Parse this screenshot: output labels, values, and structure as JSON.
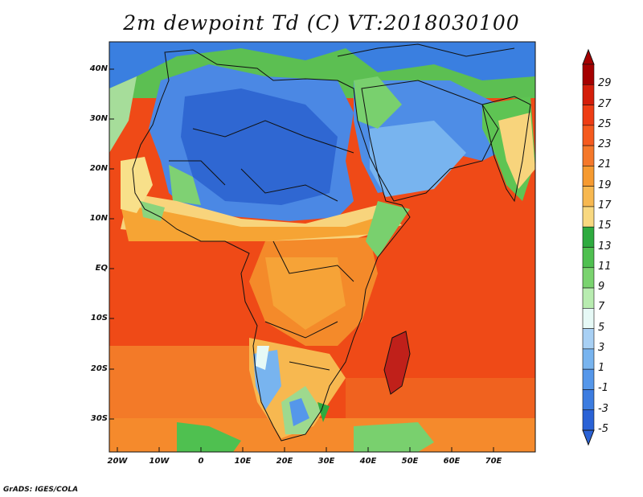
{
  "title": "2m dewpoint Td (C) VT:2018030100",
  "credit": "GrADS: IGES/COLA",
  "map": {
    "lat_labels": [
      "40N",
      "30N",
      "20N",
      "10N",
      "EQ",
      "10S",
      "20S",
      "30S"
    ],
    "lon_labels": [
      "20W",
      "10W",
      "0",
      "10E",
      "20E",
      "30E",
      "40E",
      "50E",
      "60E",
      "70E"
    ]
  },
  "colorbar": {
    "labels": [
      "29",
      "27",
      "25",
      "23",
      "21",
      "19",
      "17",
      "15",
      "13",
      "11",
      "9",
      "7",
      "5",
      "3",
      "1",
      "-1",
      "-3",
      "-5"
    ],
    "colors": [
      "#a50000",
      "#d41e0a",
      "#ee3d14",
      "#f55a1e",
      "#f5782a",
      "#f69a30",
      "#f7b850",
      "#f8d880",
      "#2eab3f",
      "#4fc050",
      "#7ad36f",
      "#b8ecb0",
      "#e6f9f6",
      "#a8d0f4",
      "#78b4ef",
      "#5597ea",
      "#3c7ce0",
      "#2a62d6"
    ]
  }
}
